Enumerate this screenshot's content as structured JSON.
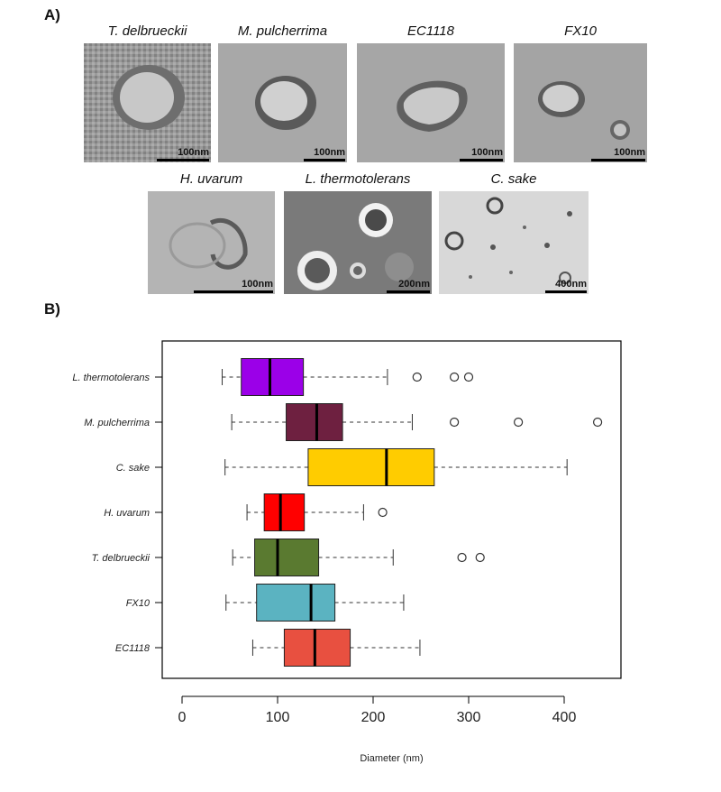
{
  "panelA": {
    "label": "A)",
    "micrographs": [
      {
        "title": "T. delbrueckii",
        "scale": "100nm"
      },
      {
        "title": "M. pulcherrima",
        "scale": "100nm"
      },
      {
        "title": "EC1118",
        "scale": "100nm"
      },
      {
        "title": "FX10",
        "scale": "100nm"
      },
      {
        "title": "H. uvarum",
        "scale": "100nm"
      },
      {
        "title": "L. thermotolerans",
        "scale": "200nm"
      },
      {
        "title": "C. sake",
        "scale": "400nm"
      }
    ]
  },
  "panelB": {
    "label": "B)"
  },
  "chart_data": {
    "type": "boxplot",
    "orientation": "horizontal",
    "xlabel": "Diameter (nm)",
    "xlim": [
      0,
      450
    ],
    "xticks": [
      0,
      100,
      200,
      300,
      400
    ],
    "grid": false,
    "categories": [
      "L. thermotolerans",
      "M. pulcherrima",
      "C. sake",
      "H. uvarum",
      "T. delbrueckii",
      "FX10",
      "EC1118"
    ],
    "boxes": [
      {
        "name": "L. thermotolerans",
        "whisker_low": 42,
        "q1": 62,
        "median": 92,
        "q3": 127,
        "whisker_high": 215,
        "outliers": [
          246,
          285,
          300
        ],
        "color": "#9b00e8"
      },
      {
        "name": "M. pulcherrima",
        "whisker_low": 52,
        "q1": 109,
        "median": 141,
        "q3": 168,
        "whisker_high": 241,
        "outliers": [
          285,
          352,
          435
        ],
        "color": "#6e2040"
      },
      {
        "name": "C. sake",
        "whisker_low": 45,
        "q1": 132,
        "median": 214,
        "q3": 264,
        "whisker_high": 403,
        "outliers": [],
        "color": "#ffcc00"
      },
      {
        "name": "H. uvarum",
        "whisker_low": 68,
        "q1": 86,
        "median": 103,
        "q3": 128,
        "whisker_high": 190,
        "outliers": [
          210
        ],
        "color": "#ff0000"
      },
      {
        "name": "T. delbrueckii",
        "whisker_low": 53,
        "q1": 76,
        "median": 100,
        "q3": 143,
        "whisker_high": 221,
        "outliers": [
          293,
          312
        ],
        "color": "#5a7a30"
      },
      {
        "name": "FX10",
        "whisker_low": 46,
        "q1": 78,
        "median": 135,
        "q3": 160,
        "whisker_high": 232,
        "outliers": [],
        "color": "#5bb3c1"
      },
      {
        "name": "EC1118",
        "whisker_low": 74,
        "q1": 107,
        "median": 139,
        "q3": 176,
        "whisker_high": 249,
        "outliers": [],
        "color": "#e85040"
      }
    ]
  }
}
